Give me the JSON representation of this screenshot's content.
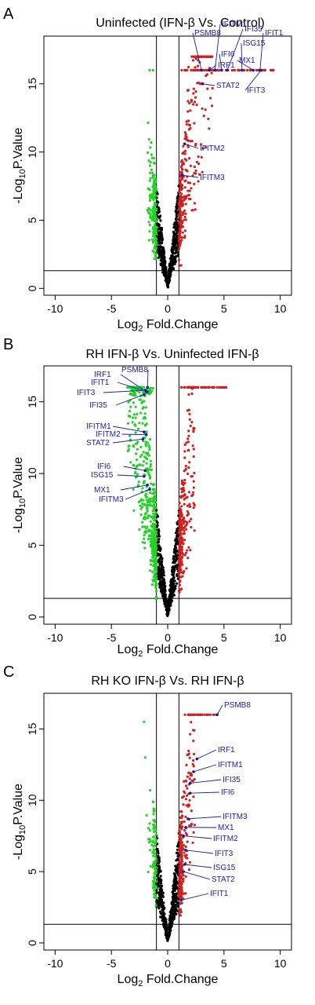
{
  "colors": {
    "up": "#d21f1f",
    "down": "#22d422",
    "ns": "#000000",
    "annotation": "#1a1aa6"
  },
  "chart_data": [
    {
      "type": "scatter",
      "panel": "A",
      "title": "Uninfected (IFN-β Vs. Control)",
      "xlabel_parts": [
        "Log",
        "2",
        " Fold.Change"
      ],
      "ylabel_parts": [
        "-Log",
        "10",
        "P.Value"
      ],
      "xlim": [
        -11,
        11
      ],
      "ylim": [
        -0.5,
        18.5
      ],
      "xticks": [
        -10,
        -5,
        0,
        5,
        10
      ],
      "yticks": [
        0,
        5,
        10,
        15
      ],
      "thresholds": {
        "x": [
          -1,
          1
        ],
        "y": 1.3
      },
      "labels": [
        {
          "gene": "PSMB8",
          "x": 3.0,
          "y": 16.0
        },
        {
          "gene": "IFITM1",
          "x": 4.2,
          "y": 16.0
        },
        {
          "gene": "IFI35",
          "x": 5.3,
          "y": 16.0
        },
        {
          "gene": "IFIT1",
          "x": 8.2,
          "y": 16.0
        },
        {
          "gene": "ISG15",
          "x": 6.6,
          "y": 16.0
        },
        {
          "gene": "IFI6",
          "x": 4.8,
          "y": 16.0
        },
        {
          "gene": "MX1",
          "x": 7.6,
          "y": 16.0
        },
        {
          "gene": "IRF1",
          "x": 3.7,
          "y": 16.0
        },
        {
          "gene": "STAT2",
          "x": 3.1,
          "y": 15.0
        },
        {
          "gene": "IFIT3",
          "x": 8.3,
          "y": 16.0
        },
        {
          "gene": "IFITM2",
          "x": 1.5,
          "y": 10.6
        },
        {
          "gene": "IFITM3",
          "x": 1.3,
          "y": 8.3
        }
      ]
    },
    {
      "type": "scatter",
      "panel": "B",
      "title": "RH IFN-β Vs. Uninfected IFN-β",
      "xlabel_parts": [
        "Log",
        "2",
        " Fold.Change"
      ],
      "ylabel_parts": [
        "-Log",
        "10",
        "P.Value"
      ],
      "xlim": [
        -11,
        11
      ],
      "ylim": [
        -0.5,
        17.5
      ],
      "xticks": [
        -10,
        -5,
        0,
        5,
        10
      ],
      "yticks": [
        0,
        5,
        10,
        15
      ],
      "thresholds": {
        "x": [
          -1,
          1
        ],
        "y": 1.3
      },
      "labels": [
        {
          "gene": "IRF1",
          "x": -1.9,
          "y": 15.7
        },
        {
          "gene": "PSMB8",
          "x": -1.8,
          "y": 16.0
        },
        {
          "gene": "IFIT1",
          "x": -1.8,
          "y": 15.7
        },
        {
          "gene": "IFIT3",
          "x": -2.0,
          "y": 15.8
        },
        {
          "gene": "IFI35",
          "x": -2.1,
          "y": 15.5
        },
        {
          "gene": "IFITM1",
          "x": -2.1,
          "y": 12.9
        },
        {
          "gene": "IFITM2",
          "x": -1.9,
          "y": 12.7
        },
        {
          "gene": "STAT2",
          "x": -2.2,
          "y": 12.4
        },
        {
          "gene": "IFI6",
          "x": -2.0,
          "y": 10.2
        },
        {
          "gene": "ISG15",
          "x": -2.1,
          "y": 9.8
        },
        {
          "gene": "MX1",
          "x": -1.8,
          "y": 9.2
        },
        {
          "gene": "IFITM3",
          "x": -1.6,
          "y": 8.9
        }
      ]
    },
    {
      "type": "scatter",
      "panel": "C",
      "title": "RH KO IFN-β Vs. RH IFN-β",
      "xlabel_parts": [
        "Log",
        "2",
        " Fold.Change"
      ],
      "ylabel_parts": [
        "-Log",
        "10",
        "P.Value"
      ],
      "xlim": [
        -11,
        11
      ],
      "ylim": [
        -0.5,
        17.5
      ],
      "xticks": [
        -10,
        -5,
        0,
        5,
        10
      ],
      "yticks": [
        0,
        5,
        10,
        15
      ],
      "thresholds": {
        "x": [
          -1,
          1
        ],
        "y": 1.3
      },
      "labels": [
        {
          "gene": "PSMB8",
          "x": 4.4,
          "y": 16.0
        },
        {
          "gene": "IRF1",
          "x": 2.6,
          "y": 12.9
        },
        {
          "gene": "IFITM1",
          "x": 2.3,
          "y": 12.0
        },
        {
          "gene": "IFI35",
          "x": 2.0,
          "y": 11.2
        },
        {
          "gene": "IFI6",
          "x": 2.0,
          "y": 10.5
        },
        {
          "gene": "IFITM3",
          "x": 1.8,
          "y": 8.7
        },
        {
          "gene": "MX1",
          "x": 1.6,
          "y": 8.1
        },
        {
          "gene": "IFITM2",
          "x": 1.4,
          "y": 7.5
        },
        {
          "gene": "IFIT3",
          "x": 1.6,
          "y": 6.5
        },
        {
          "gene": "ISG15",
          "x": 1.5,
          "y": 5.5
        },
        {
          "gene": "STAT2",
          "x": 1.4,
          "y": 5.0
        },
        {
          "gene": "IFIT1",
          "x": 1.2,
          "y": 3.0
        }
      ]
    }
  ]
}
